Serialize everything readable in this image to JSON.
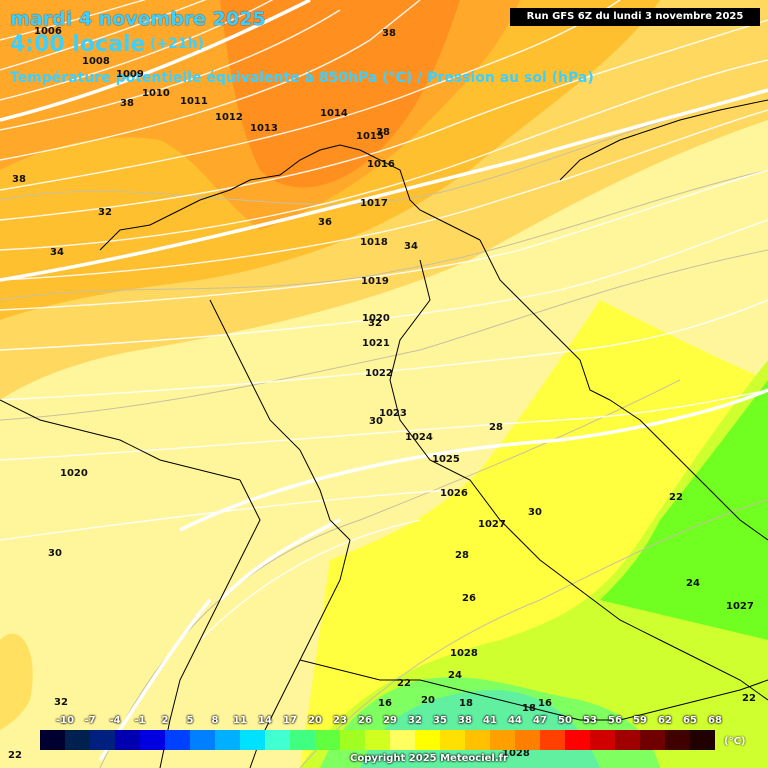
{
  "header": {
    "date": "mardi 4 novembre 2025",
    "time": "4:00 locale",
    "lead": "(+21h)",
    "title": "Température potentielle équivalente à 850hPa (°C) / Pression au sol (hPa)",
    "run": "Run GFS 6Z du lundi 3 novembre 2025"
  },
  "pressure_labels": [
    "1006",
    "1008",
    "1009",
    "1010",
    "1011",
    "1012",
    "1013",
    "1014",
    "1015",
    "1016",
    "1017",
    "1018",
    "1019",
    "1020",
    "1021",
    "1022",
    "1023",
    "1024",
    "1025",
    "1026",
    "1027",
    "1020",
    "1028",
    "1027",
    "1028"
  ],
  "temp_labels": [
    "38",
    "38",
    "38",
    "38",
    "32",
    "34",
    "36",
    "34",
    "32",
    "30",
    "28",
    "30",
    "28",
    "26",
    "24",
    "22",
    "22",
    "20",
    "18",
    "16",
    "30",
    "32",
    "22",
    "24",
    "22",
    "16",
    "18"
  ],
  "legend": {
    "ticks": [
      "-10",
      "-7",
      "-4",
      "-1",
      "2",
      "5",
      "8",
      "11",
      "14",
      "17",
      "20",
      "23",
      "26",
      "29",
      "32",
      "35",
      "38",
      "41",
      "44",
      "47",
      "50",
      "53",
      "56",
      "59",
      "62",
      "65",
      "68"
    ],
    "colors": [
      "#000030",
      "#00204f",
      "#002080",
      "#0000b0",
      "#0000e0",
      "#0040ff",
      "#0080ff",
      "#00b0ff",
      "#00e0ff",
      "#40ffd0",
      "#40ff80",
      "#60ff40",
      "#a0ff20",
      "#d0ff20",
      "#ffff60",
      "#ffff00",
      "#ffe000",
      "#ffc000",
      "#ffa000",
      "#ff8000",
      "#ff4000",
      "#ff0000",
      "#d00000",
      "#a00000",
      "#700000",
      "#400000",
      "#200000"
    ],
    "unit": "(°C)"
  },
  "copyright": "Copyright 2025 Meteociel.fr"
}
